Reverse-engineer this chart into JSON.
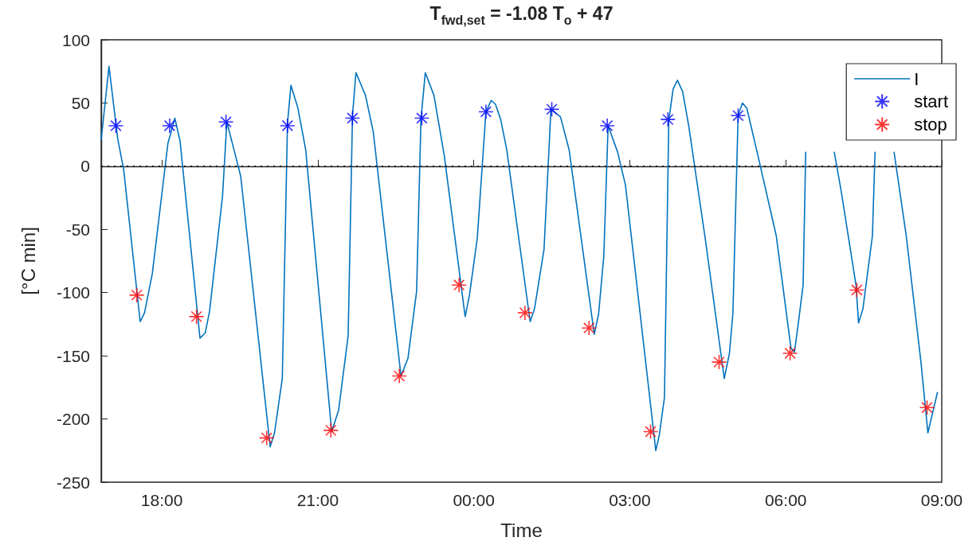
{
  "chart_data": {
    "type": "line",
    "title": "T$_{fwd,set}$ = -1.08 T$_{o}$ + 47",
    "xlabel": "Time",
    "ylabel": "[°C min]",
    "xlim": [
      "--01-01T16:50",
      "--01-02T09:00"
    ],
    "xticks": [
      {
        "value": "--01-01T18:00",
        "label": "18:00"
      },
      {
        "value": "--01-01T21:00",
        "label": "21:00"
      },
      {
        "value": "--01-02T00:00",
        "label": "00:00"
      },
      {
        "value": "--01-02T03:00",
        "label": "03:00"
      },
      {
        "value": "--01-02T06:00",
        "label": "06:00"
      },
      {
        "value": "--01-02T09:00",
        "label": "09:00"
      }
    ],
    "ylim": [
      -250,
      100
    ],
    "yticks": [
      -250,
      -200,
      -150,
      -100,
      -50,
      0,
      50,
      100
    ],
    "grid": false,
    "legend": "top right",
    "ref_lines": [
      {
        "axis": "y",
        "value": 0,
        "color": "#000000",
        "line_style": "dotted"
      }
    ],
    "series": [
      {
        "name": "I",
        "color": "#0072bd",
        "marker": "none",
        "x": [
          "--01-01T16:50",
          "--01-01T16:59",
          "--01-01T17:09",
          "--01-01T17:16",
          "--01-01T17:35",
          "--01-01T17:40",
          "--01-01T17:49",
          "--01-01T18:07",
          "--01-01T18:15",
          "--01-01T18:21",
          "--01-01T18:44",
          "--01-01T18:50",
          "--01-01T18:55",
          "--01-01T19:10",
          "--01-01T19:15",
          "--01-01T19:24",
          "--01-01T19:31",
          "--01-01T20:05",
          "--01-01T20:10",
          "--01-01T20:19",
          "--01-01T20:25",
          "--01-01T20:29",
          "--01-01T20:37",
          "--01-01T20:46",
          "--01-01T21:16",
          "--01-01T21:24",
          "--01-01T21:35",
          "--01-01T21:40",
          "--01-01T21:44",
          "--01-01T21:55",
          "--01-01T22:04",
          "--01-01T22:36",
          "--01-01T22:44",
          "--01-01T22:54",
          "--01-01T22:59",
          "--01-01T23:04",
          "--01-01T23:14",
          "--01-01T23:26",
          "--01-01T23:50",
          "--01-01T23:55",
          "--01-02T00:04",
          "--01-02T00:14",
          "--01-02T00:20",
          "--01-02T00:25",
          "--01-02T00:31",
          "--01-02T00:38",
          "--01-02T01:05",
          "--01-02T01:10",
          "--01-02T01:21",
          "--01-02T01:29",
          "--01-02T01:40",
          "--01-02T01:50",
          "--01-02T02:19",
          "--01-02T02:24",
          "--01-02T02:30",
          "--01-02T02:35",
          "--01-02T02:46",
          "--01-02T02:55",
          "--01-02T03:30",
          "--01-02T03:34",
          "--01-02T03:40",
          "--01-02T03:45",
          "--01-02T03:50",
          "--01-02T03:55",
          "--01-02T04:01",
          "--01-02T04:08",
          "--01-02T04:27",
          "--01-02T04:49",
          "--01-02T04:55",
          "--01-02T04:59",
          "--01-02T05:05",
          "--01-02T05:10",
          "--01-02T05:15",
          "--01-02T05:28",
          "--01-02T05:49",
          "--01-02T06:06",
          "--01-02T06:10",
          "--01-02T06:14",
          "--01-02T06:20",
          "--01-02T06:23",
          "--01-02T06:40",
          "--01-02T06:56",
          "--01-02T07:04",
          "--01-02T07:21",
          "--01-02T07:24",
          "--01-02T07:29",
          "--01-02T07:40",
          "--01-02T07:43",
          "--01-02T07:54",
          "--01-02T08:05",
          "--01-02T08:19",
          "--01-02T08:36",
          "--01-02T08:44",
          "--01-02T08:55"
        ],
        "values": [
          21,
          79,
          22,
          -3,
          -123,
          -116,
          -85,
          18,
          38,
          20,
          -136,
          -132,
          -115,
          -24,
          35,
          11,
          -8,
          -222,
          -211,
          -168,
          34,
          64,
          46,
          13,
          -210,
          -193,
          -134,
          40,
          74,
          56,
          27,
          -166,
          -152,
          -99,
          37,
          74,
          56,
          8,
          -119,
          -102,
          -57,
          43,
          52,
          49,
          37,
          13,
          -123,
          -113,
          -66,
          45,
          39,
          13,
          -133,
          -117,
          -71,
          32,
          11,
          -15,
          -225,
          -213,
          -183,
          36,
          61,
          68,
          59,
          32,
          -57,
          -168,
          -148,
          -116,
          40,
          50,
          46,
          8,
          -55,
          -144,
          -147,
          -127,
          -94,
          11,
          null,
          11,
          -20,
          -94,
          -124,
          -113,
          -55,
          11,
          null,
          11,
          -55,
          -155,
          -211,
          -179
        ]
      },
      {
        "name": "start",
        "type": "scatter",
        "color": "#0000ff",
        "marker": "cross",
        "x": [
          "--01-01T17:07",
          "--01-01T18:09",
          "--01-01T19:14",
          "--01-01T20:25",
          "--01-01T21:40",
          "--01-01T23:00",
          "--01-02T00:14",
          "--01-02T01:30",
          "--01-02T02:34",
          "--01-02T03:44",
          "--01-02T05:05"
        ],
        "values": [
          32,
          32,
          35,
          32,
          38,
          38,
          43,
          45,
          32,
          37,
          40
        ]
      },
      {
        "name": "stop",
        "type": "scatter",
        "color": "#ff0000",
        "marker": "cross",
        "x": [
          "--01-01T17:31",
          "--01-01T18:40",
          "--01-01T20:01",
          "--01-01T21:15",
          "--01-01T22:34",
          "--01-01T23:43",
          "--01-02T00:59",
          "--01-02T02:13",
          "--01-02T03:24",
          "--01-02T04:43",
          "--01-02T06:05",
          "--01-02T07:22",
          "--01-02T08:43"
        ],
        "values": [
          -102,
          -119,
          -215,
          -209,
          -166,
          -94,
          -116,
          -128,
          -210,
          -155,
          -148,
          -98,
          -191
        ]
      }
    ]
  }
}
